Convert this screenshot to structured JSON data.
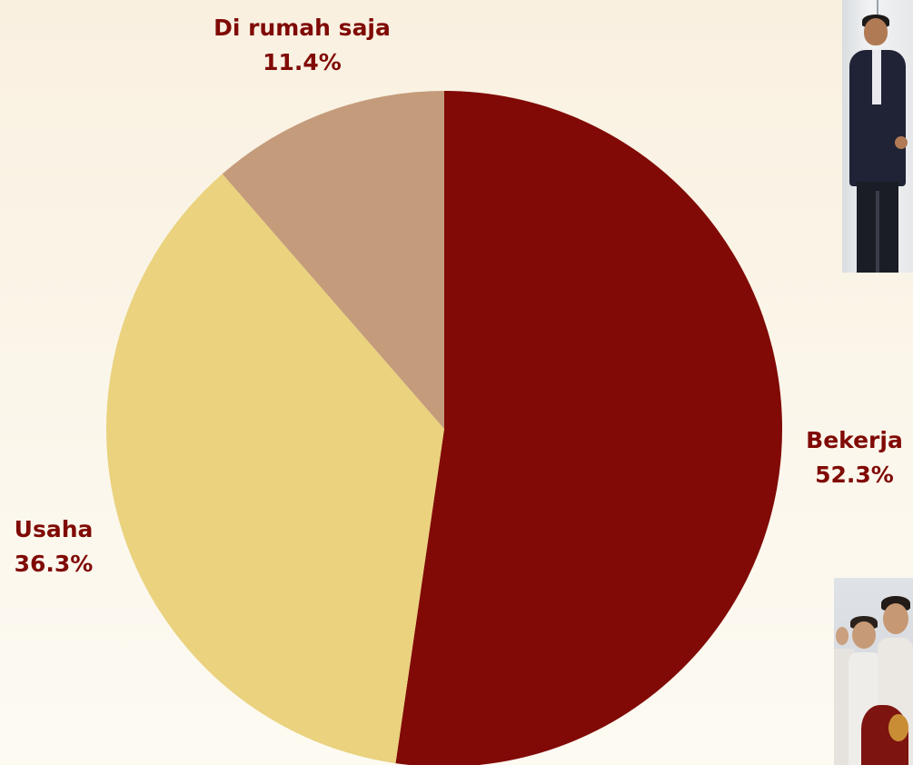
{
  "chart_data": {
    "type": "pie",
    "title": "",
    "start_angle_deg": 0,
    "direction": "clockwise",
    "label_color": "#800a05",
    "slices": [
      {
        "label": "Bekerja",
        "value": 52.3,
        "value_label": "52.3%",
        "color": "#810a06"
      },
      {
        "label": "Usaha",
        "value": 36.3,
        "value_label": "36.3%",
        "color": "#ead27e"
      },
      {
        "label": "Di rumah saja",
        "value": 11.4,
        "value_label": "11.4%",
        "color": "#c49b7b"
      }
    ]
  },
  "photos": [
    {
      "subject": "man-in-suit-photo"
    },
    {
      "subject": "group-of-students-photo"
    }
  ]
}
